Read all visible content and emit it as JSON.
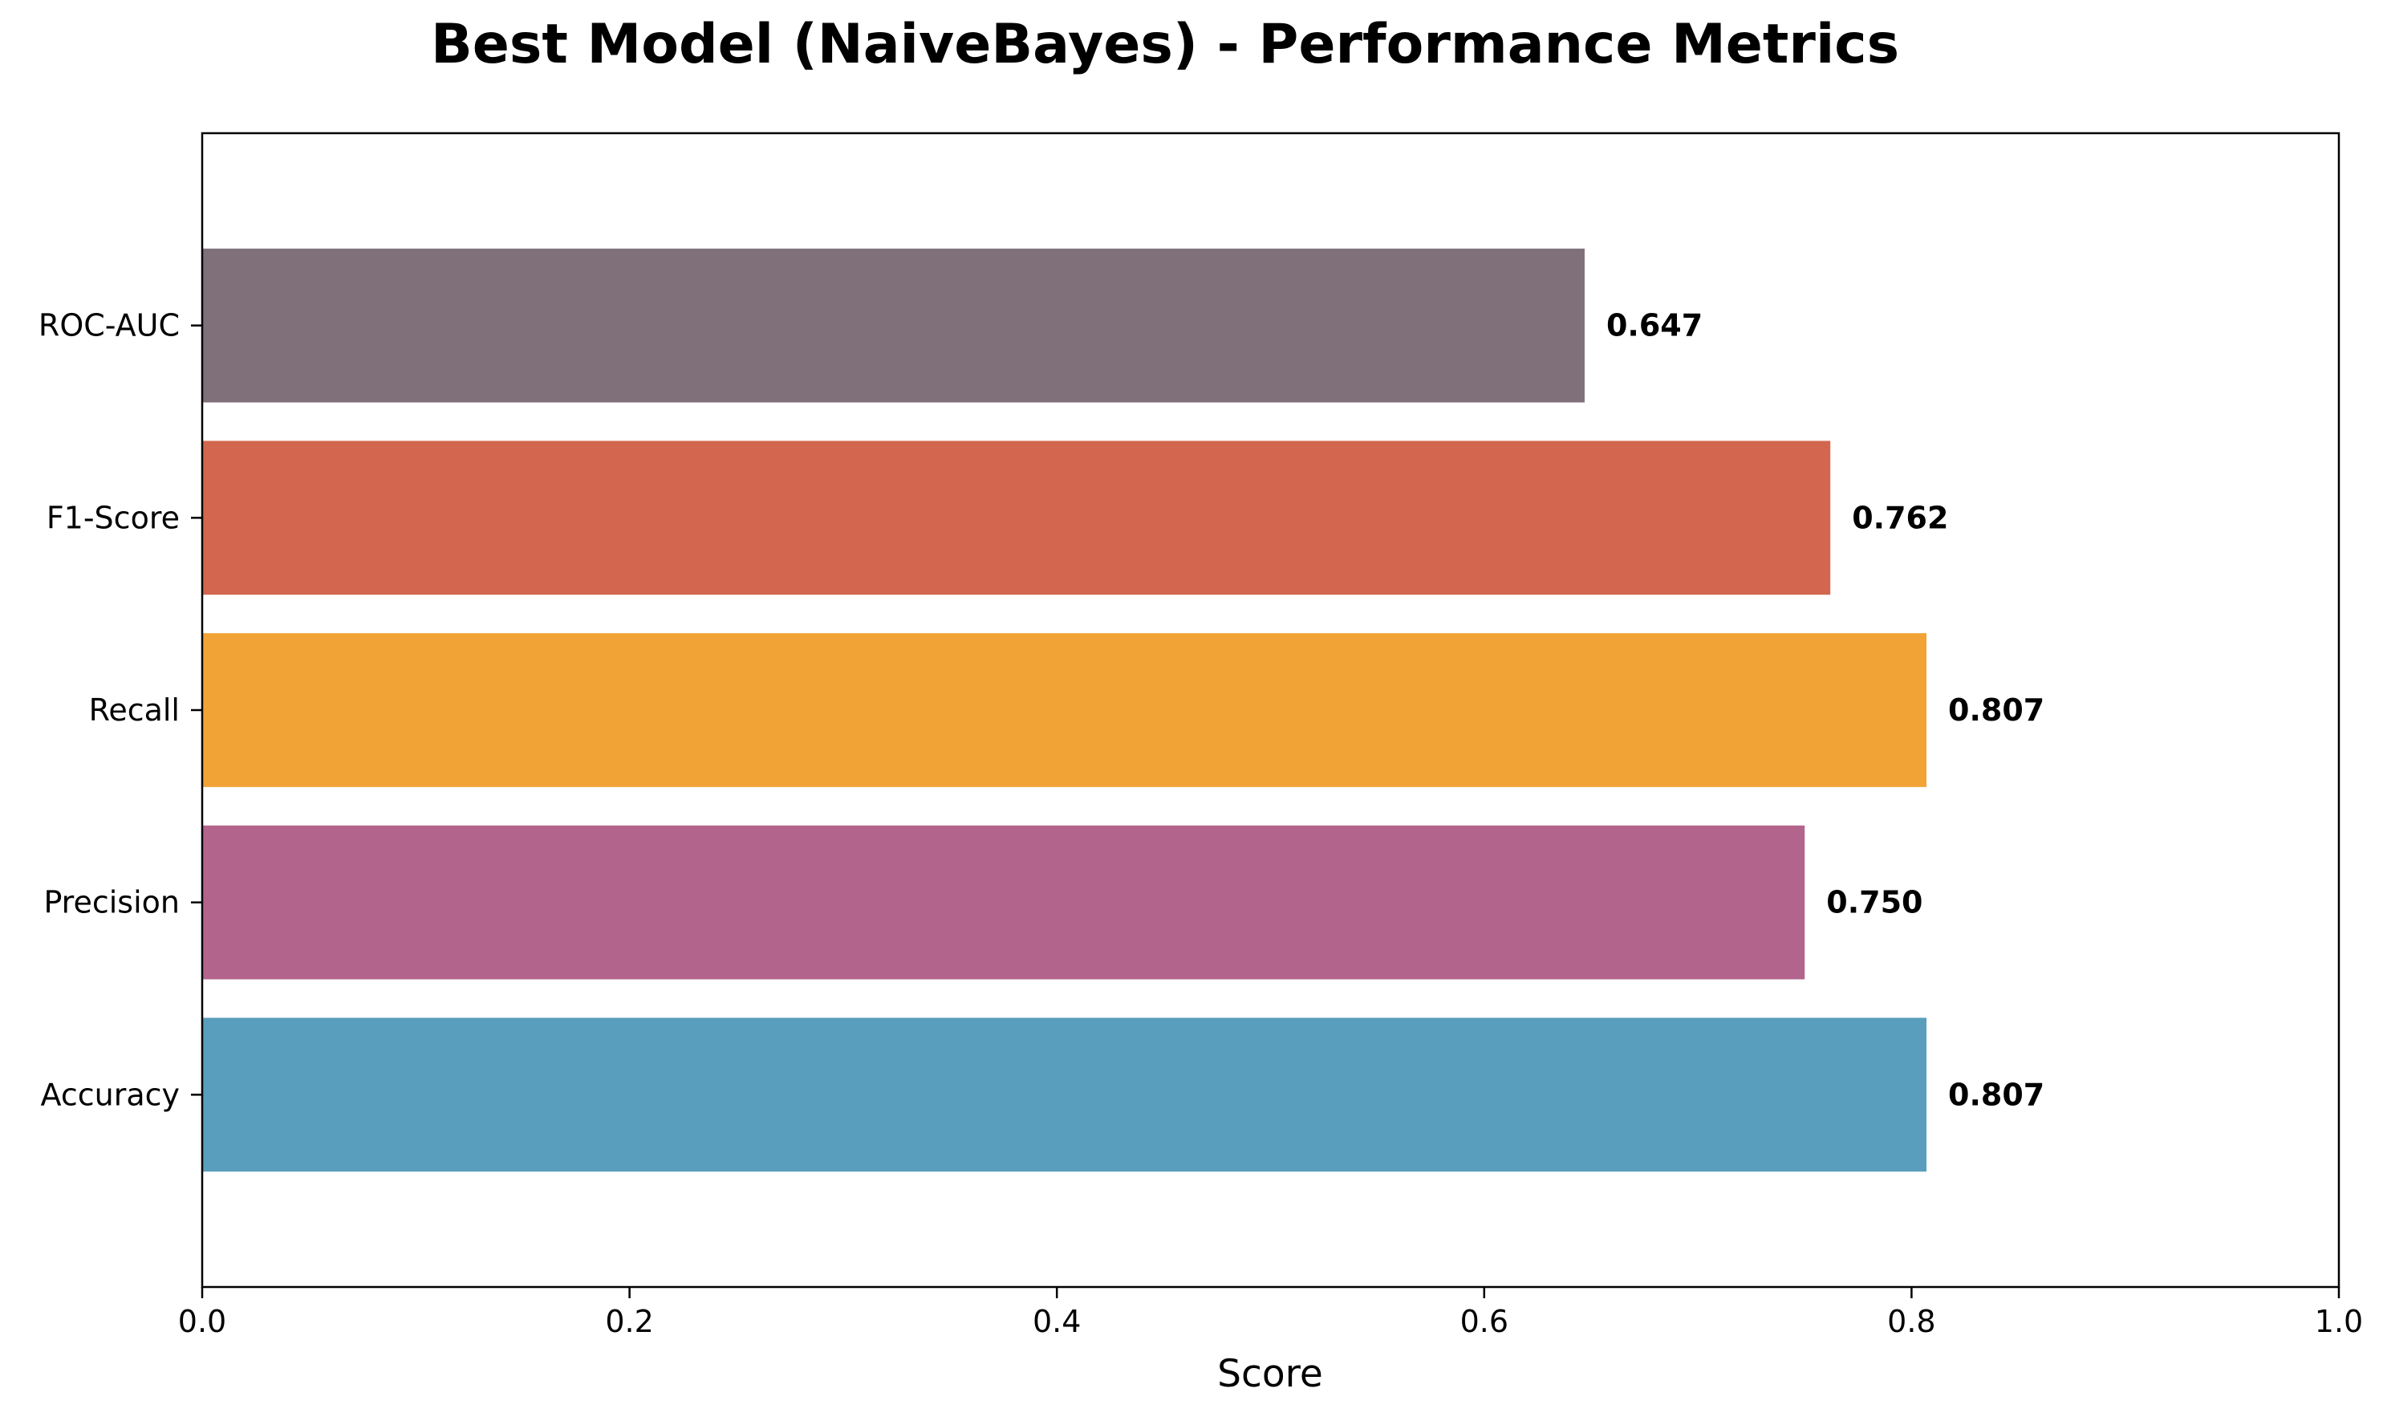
{
  "chart_data": {
    "type": "bar",
    "orientation": "horizontal",
    "title": "Best Model (NaiveBayes) - Performance Metrics",
    "xlabel": "Score",
    "ylabel": "",
    "xlim": [
      0.0,
      1.0
    ],
    "x_ticks": [
      "0.0",
      "0.2",
      "0.4",
      "0.6",
      "0.8",
      "1.0"
    ],
    "x_tick_values": [
      0.0,
      0.2,
      0.4,
      0.6,
      0.8,
      1.0
    ],
    "grid": false,
    "categories": [
      "Accuracy",
      "Precision",
      "Recall",
      "F1-Score",
      "ROC-AUC"
    ],
    "values": [
      0.807,
      0.75,
      0.807,
      0.762,
      0.647
    ],
    "value_labels": [
      "0.807",
      "0.750",
      "0.807",
      "0.762",
      "0.647"
    ],
    "colors": [
      "#5a9ebd",
      "#b3648c",
      "#f1a435",
      "#d3664e",
      "#80707a"
    ]
  }
}
